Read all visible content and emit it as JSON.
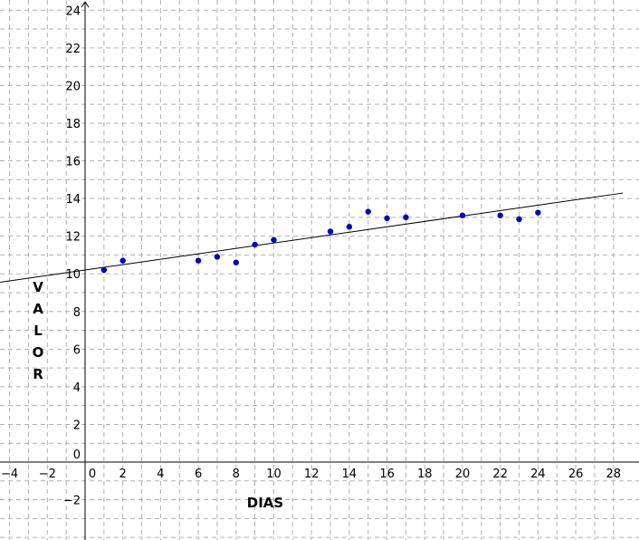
{
  "chart_data": {
    "type": "scatter",
    "title": "",
    "xlabel": "DIAS",
    "ylabel": "VALOR",
    "xlim": [
      -4.5,
      28.5
    ],
    "ylim": [
      -4.5,
      24.2
    ],
    "grid": true,
    "x_ticks": [
      -4,
      -2,
      0,
      2,
      4,
      6,
      8,
      10,
      12,
      14,
      16,
      18,
      20,
      22,
      24,
      26,
      28
    ],
    "y_ticks": [
      -2,
      0,
      2,
      4,
      6,
      8,
      10,
      12,
      14,
      16,
      18,
      20,
      22,
      24
    ],
    "colors": {
      "points": "#0000bf",
      "trendline": "#000000",
      "grid": "#b0b0b0"
    },
    "series": [
      {
        "x": [
          1,
          2,
          6,
          7,
          8,
          9,
          10,
          13,
          14,
          15,
          16,
          17,
          20,
          22,
          23,
          24
        ],
        "y": [
          10.2,
          10.7,
          10.7,
          10.9,
          10.6,
          11.55,
          11.8,
          12.25,
          12.5,
          13.3,
          12.95,
          13.0,
          13.1,
          13.1,
          12.9,
          13.25
        ]
      }
    ],
    "trendline": {
      "slope": 0.1435,
      "intercept": 10.2
    }
  }
}
